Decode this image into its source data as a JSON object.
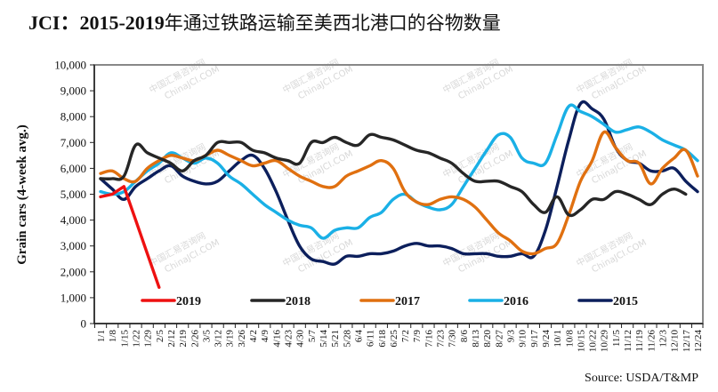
{
  "title": {
    "prefix": "JCI：2015-2019",
    "text": "年通过铁路运输至美西北港口的谷物数量"
  },
  "source": "Source:  USDA/T&MP",
  "watermark": {
    "cn": "中国汇易咨询网",
    "en": "ChinaJCI.COM"
  },
  "chart_data": {
    "type": "line",
    "title": "JCI：2015-2019年通过铁路运输至美西北港口的谷物数量",
    "xlabel": "",
    "ylabel": "Grain cars (4-week avg.)",
    "ylim": [
      0,
      10000
    ],
    "yticks": [
      "0",
      "1,000",
      "2,000",
      "3,000",
      "4,000",
      "5,000",
      "6,000",
      "7,000",
      "8,000",
      "9,000",
      "10,000"
    ],
    "ytick_values": [
      0,
      1000,
      2000,
      3000,
      4000,
      5000,
      6000,
      7000,
      8000,
      9000,
      10000
    ],
    "grid": false,
    "legend_position": "bottom-inside",
    "x": [
      "1/1",
      "1/8",
      "1/15",
      "1/22",
      "1/29",
      "2/5",
      "2/12",
      "2/19",
      "2/26",
      "3/5",
      "3/12",
      "3/19",
      "3/26",
      "4/2",
      "4/9",
      "4/16",
      "4/23",
      "4/30",
      "5/7",
      "5/14",
      "5/21",
      "5/28",
      "6/4",
      "6/11",
      "6/18",
      "6/25",
      "7/2",
      "7/9",
      "7/16",
      "7/23",
      "7/30",
      "8/6",
      "8/13",
      "8/20",
      "8/27",
      "9/3",
      "9/10",
      "9/17",
      "9/24",
      "10/1",
      "10/8",
      "10/15",
      "10/22",
      "10/29",
      "11/5",
      "11/12",
      "11/19",
      "11/26",
      "12/3",
      "12/10",
      "12/17",
      "12/24"
    ],
    "series": [
      {
        "name": "2019",
        "color": "#ee1111",
        "values": [
          4900,
          5000,
          5300,
          4000,
          2700,
          1400,
          null,
          null,
          null,
          null,
          null,
          null,
          null,
          null,
          null,
          null,
          null,
          null,
          null,
          null,
          null,
          null,
          null,
          null,
          null,
          null,
          null,
          null,
          null,
          null,
          null,
          null,
          null,
          null,
          null,
          null,
          null,
          null,
          null,
          null,
          null,
          null,
          null,
          null,
          null,
          null,
          null,
          null,
          null,
          null,
          null,
          null
        ]
      },
      {
        "name": "2018",
        "color": "#262626",
        "values": [
          5600,
          5600,
          5700,
          6900,
          6600,
          6400,
          6200,
          5900,
          6300,
          6500,
          7000,
          7000,
          7000,
          6700,
          6600,
          6400,
          6300,
          6200,
          7000,
          7000,
          7200,
          7000,
          6900,
          7300,
          7200,
          7100,
          6900,
          6700,
          6600,
          6400,
          6200,
          5800,
          5500,
          5500,
          5500,
          5300,
          5100,
          4600,
          4300,
          4900,
          4200,
          4400,
          4800,
          4800,
          5100,
          5000,
          4800,
          4600,
          5000,
          5200,
          5000,
          null
        ]
      },
      {
        "name": "2017",
        "color": "#e07010",
        "values": [
          5800,
          5900,
          5600,
          5500,
          6000,
          6300,
          6500,
          6400,
          6300,
          6500,
          6700,
          6500,
          6300,
          6100,
          6200,
          6300,
          6000,
          5700,
          5500,
          5300,
          5300,
          5700,
          5900,
          6100,
          6300,
          6000,
          5100,
          4700,
          4600,
          4800,
          4900,
          4800,
          4500,
          4000,
          3500,
          3200,
          2800,
          2700,
          2900,
          3100,
          4200,
          5500,
          6300,
          7400,
          6800,
          6300,
          6200,
          5400,
          6000,
          6400,
          6700,
          5700
        ]
      },
      {
        "name": "2016",
        "color": "#1ab0e6",
        "values": [
          5100,
          5000,
          5100,
          5500,
          5900,
          6200,
          6600,
          6400,
          6200,
          6400,
          6200,
          5700,
          5400,
          5000,
          4600,
          4300,
          4000,
          3800,
          3700,
          3300,
          3600,
          3700,
          3700,
          4100,
          4300,
          4800,
          5000,
          4700,
          4500,
          4400,
          4600,
          5300,
          6000,
          6700,
          7300,
          7200,
          6400,
          6200,
          6200,
          7300,
          8400,
          8200,
          8000,
          7700,
          7400,
          7500,
          7600,
          7400,
          7100,
          6900,
          6700,
          6300
        ]
      },
      {
        "name": "2015",
        "color": "#0c1f5c",
        "values": [
          5600,
          5200,
          4800,
          5300,
          5600,
          5900,
          6100,
          5700,
          5500,
          5400,
          5500,
          5900,
          6300,
          6500,
          6000,
          5100,
          4000,
          3000,
          2500,
          2400,
          2300,
          2600,
          2600,
          2700,
          2700,
          2800,
          3000,
          3100,
          3000,
          3000,
          2900,
          2700,
          2700,
          2700,
          2600,
          2600,
          2700,
          2600,
          3600,
          5300,
          7100,
          8500,
          8300,
          7900,
          6800,
          6300,
          6200,
          5900,
          5900,
          6000,
          5500,
          5100
        ]
      }
    ]
  }
}
